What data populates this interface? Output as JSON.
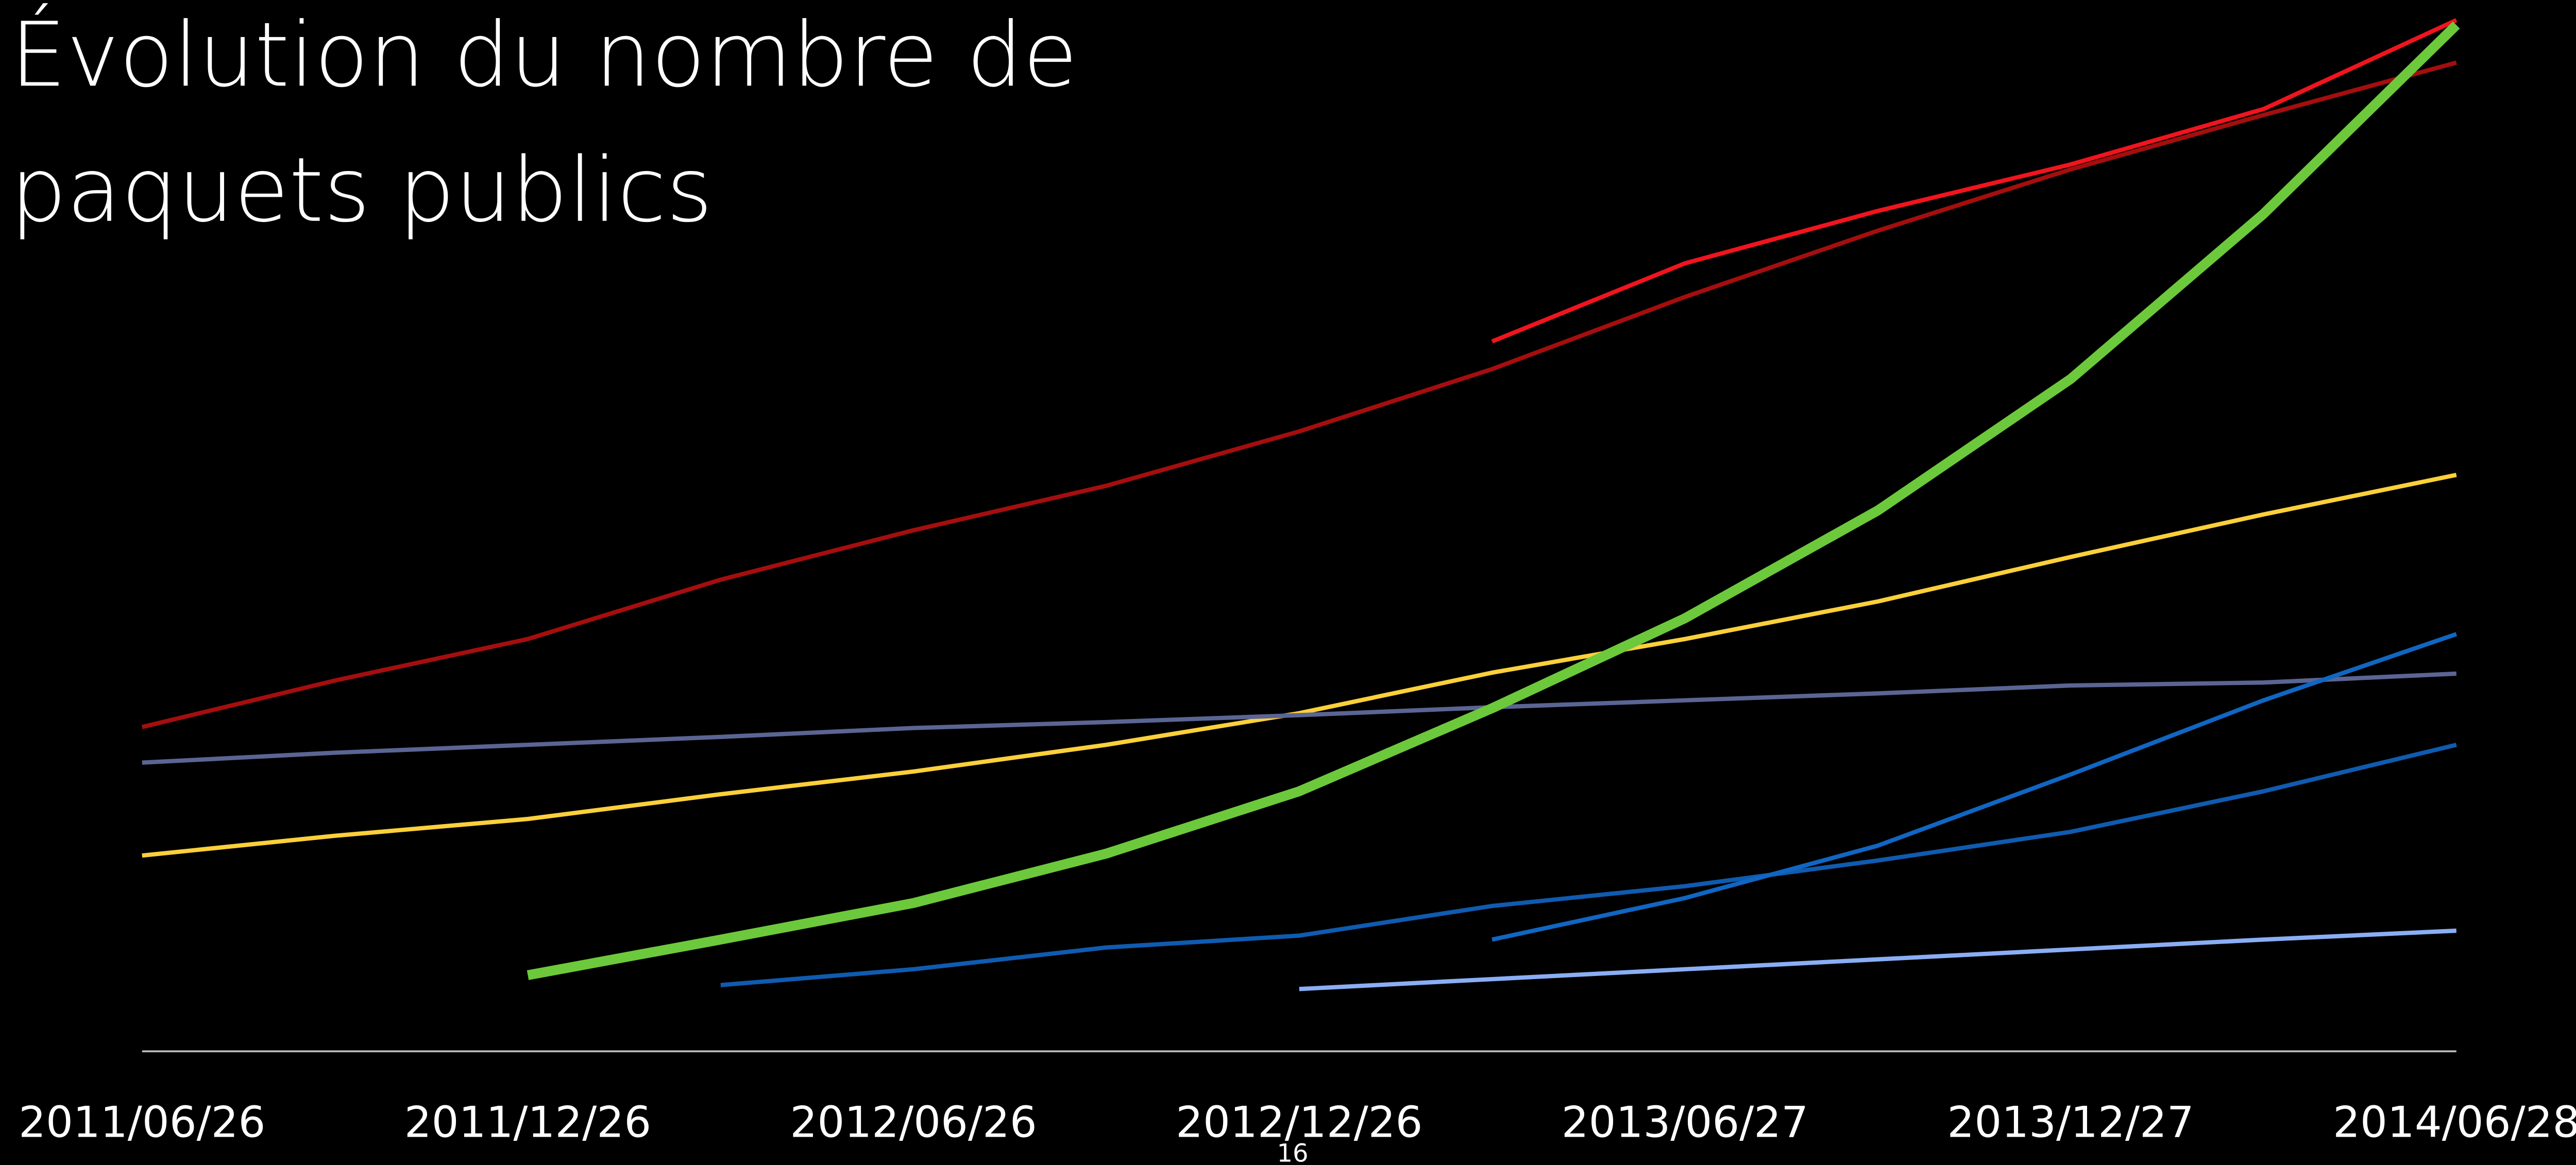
{
  "chart_data": {
    "type": "line",
    "title": [
      "Évolution du nombre de",
      "paquets publics"
    ],
    "x": [
      "2011/06/26",
      null,
      "2011/12/26",
      null,
      "2012/06/26",
      null,
      "2012/12/26",
      null,
      "2013/06/27",
      null,
      "2013/12/27",
      null,
      "2014/06/28"
    ],
    "ylim": [
      0,
      105
    ],
    "grid": false,
    "series": [
      {
        "color": "#a50e0e",
        "values": [
          32.8,
          37.5,
          41.7,
          47.7,
          52.7,
          57.2,
          62.7,
          69,
          76.3,
          83,
          89.2,
          94.7,
          100
        ]
      },
      {
        "color": "#f0141e",
        "values": [
          null,
          null,
          null,
          null,
          null,
          null,
          null,
          71.8,
          79.7,
          85,
          89.7,
          95.3,
          104.3
        ]
      },
      {
        "color": "#fcd03a",
        "values": [
          19.8,
          21.8,
          23.5,
          26,
          28.3,
          31,
          34.2,
          38.3,
          41.7,
          45.5,
          50,
          54.3,
          58.3
        ]
      },
      {
        "color": "#5b6594",
        "values": [
          29.2,
          30.2,
          31,
          31.8,
          32.7,
          33.3,
          34,
          34.8,
          35.5,
          36.2,
          37,
          37.3,
          38.2
        ]
      },
      {
        "color": "#0f5bb0",
        "values": [
          null,
          null,
          null,
          6.7,
          8.3,
          10.5,
          11.7,
          14.7,
          16.7,
          19.3,
          22.2,
          26.3,
          31
        ]
      },
      {
        "color": "#1066c2",
        "values": [
          null,
          null,
          null,
          null,
          null,
          null,
          null,
          11.3,
          15.5,
          20.8,
          28,
          35.5,
          42.2
        ]
      },
      {
        "color": "#8aaef5",
        "values": [
          null,
          null,
          null,
          null,
          null,
          null,
          6.3,
          7.3,
          8.3,
          9.3,
          10.3,
          11.3,
          12.2
        ]
      },
      {
        "color": "#6cc93b",
        "values": [
          null,
          null,
          7.7,
          11.3,
          15,
          20,
          26.3,
          34.7,
          43.8,
          54.7,
          68,
          84.7,
          103.8
        ]
      }
    ]
  },
  "page_number": "16"
}
